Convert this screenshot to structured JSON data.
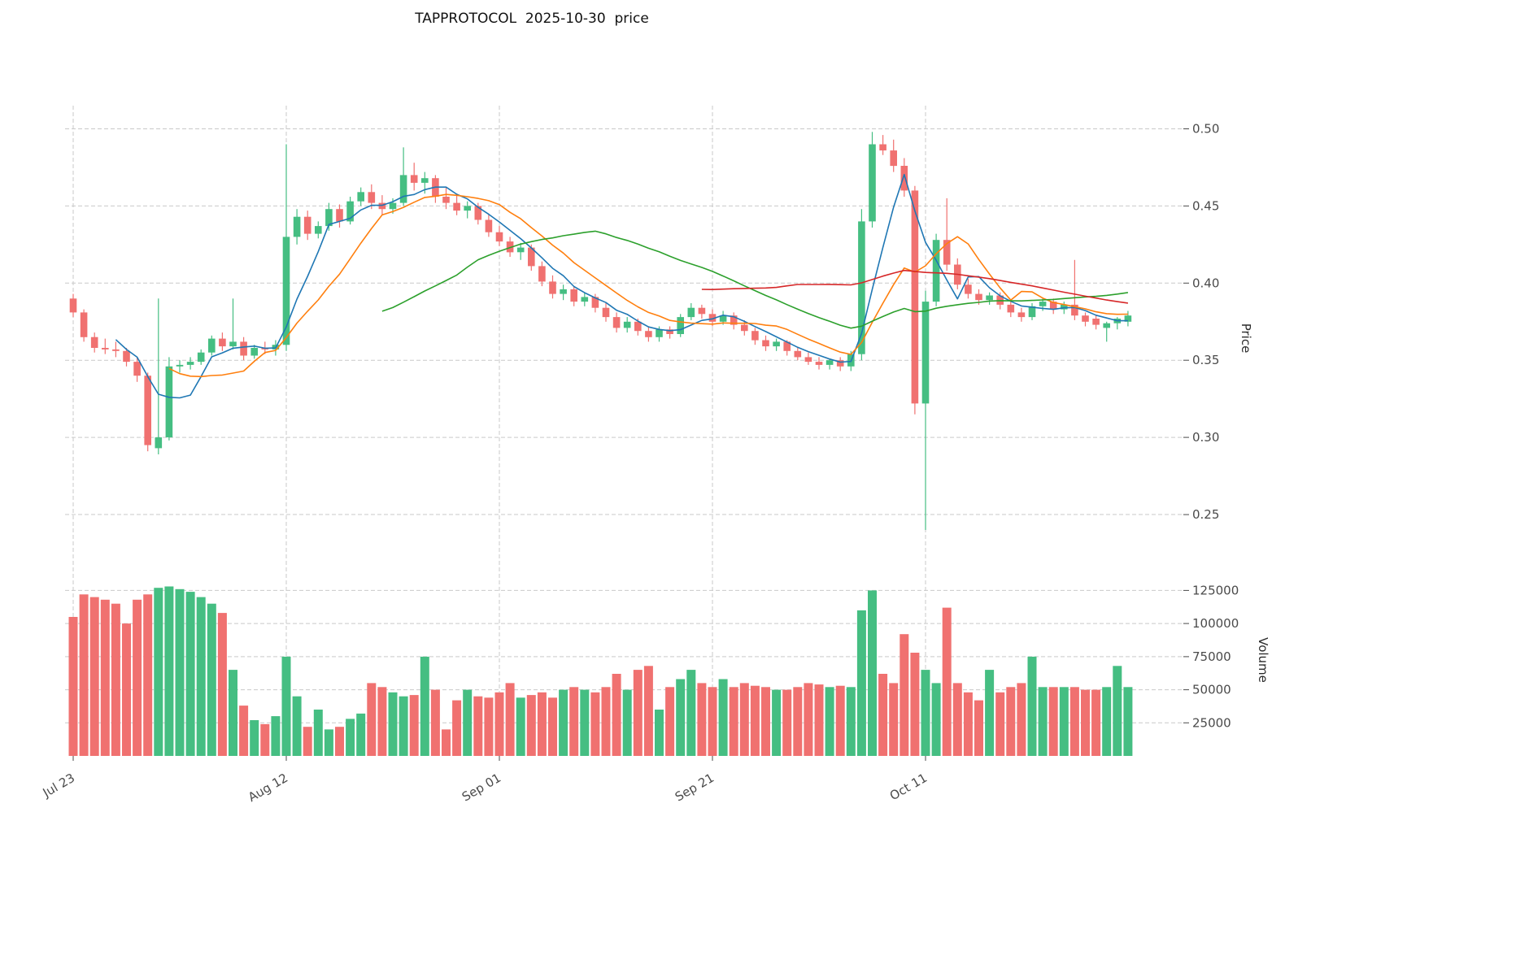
{
  "chart_data": {
    "type": "candlestick",
    "title": "TAPPROTOCOL  2025-10-30  price",
    "ylabel_price": "Price",
    "ylabel_volume": "Volume",
    "grid": true,
    "legend": "none",
    "up_color": "#45BE82",
    "down_color": "#F07170",
    "price_range": [
      0.22,
      0.515
    ],
    "volume_range": [
      0,
      140000
    ],
    "price_ticks": [
      0.25,
      0.3,
      0.35,
      0.4,
      0.45,
      0.5
    ],
    "volume_ticks": [
      25000,
      50000,
      75000,
      100000,
      125000
    ],
    "x_ticks": [
      {
        "index": 0,
        "label": "Jul 23"
      },
      {
        "index": 20,
        "label": "Aug 12"
      },
      {
        "index": 40,
        "label": "Sep 01"
      },
      {
        "index": 60,
        "label": "Sep 21"
      },
      {
        "index": 80,
        "label": "Oct 11"
      }
    ],
    "moving_averages": [
      {
        "period": 5,
        "color": "#1f77b4"
      },
      {
        "period": 10,
        "color": "#ff7f0e"
      },
      {
        "period": 30,
        "color": "#2ca02c"
      },
      {
        "period": 60,
        "color": "#d62728"
      }
    ],
    "ohlc": [
      [
        0.39,
        0.393,
        0.378,
        0.381
      ],
      [
        0.381,
        0.383,
        0.362,
        0.365
      ],
      [
        0.365,
        0.368,
        0.355,
        0.358
      ],
      [
        0.358,
        0.364,
        0.354,
        0.357
      ],
      [
        0.357,
        0.362,
        0.352,
        0.356
      ],
      [
        0.356,
        0.358,
        0.346,
        0.349
      ],
      [
        0.349,
        0.352,
        0.336,
        0.34
      ],
      [
        0.34,
        0.342,
        0.291,
        0.295
      ],
      [
        0.293,
        0.39,
        0.289,
        0.3
      ],
      [
        0.3,
        0.352,
        0.298,
        0.346
      ],
      [
        0.346,
        0.35,
        0.342,
        0.347
      ],
      [
        0.347,
        0.352,
        0.344,
        0.349
      ],
      [
        0.349,
        0.357,
        0.347,
        0.355
      ],
      [
        0.355,
        0.366,
        0.353,
        0.364
      ],
      [
        0.364,
        0.368,
        0.356,
        0.359
      ],
      [
        0.359,
        0.39,
        0.357,
        0.362
      ],
      [
        0.362,
        0.365,
        0.35,
        0.353
      ],
      [
        0.353,
        0.36,
        0.351,
        0.358
      ],
      [
        0.358,
        0.362,
        0.354,
        0.357
      ],
      [
        0.357,
        0.363,
        0.353,
        0.36
      ],
      [
        0.36,
        0.49,
        0.356,
        0.43
      ],
      [
        0.43,
        0.448,
        0.425,
        0.443
      ],
      [
        0.443,
        0.447,
        0.428,
        0.432
      ],
      [
        0.432,
        0.44,
        0.429,
        0.437
      ],
      [
        0.437,
        0.452,
        0.434,
        0.448
      ],
      [
        0.448,
        0.451,
        0.436,
        0.44
      ],
      [
        0.44,
        0.456,
        0.438,
        0.453
      ],
      [
        0.453,
        0.462,
        0.45,
        0.459
      ],
      [
        0.459,
        0.464,
        0.448,
        0.452
      ],
      [
        0.452,
        0.457,
        0.444,
        0.448
      ],
      [
        0.448,
        0.455,
        0.445,
        0.452
      ],
      [
        0.452,
        0.488,
        0.45,
        0.47
      ],
      [
        0.47,
        0.478,
        0.46,
        0.465
      ],
      [
        0.465,
        0.472,
        0.458,
        0.468
      ],
      [
        0.468,
        0.47,
        0.452,
        0.456
      ],
      [
        0.456,
        0.462,
        0.448,
        0.452
      ],
      [
        0.452,
        0.458,
        0.444,
        0.447
      ],
      [
        0.447,
        0.453,
        0.442,
        0.45
      ],
      [
        0.45,
        0.452,
        0.438,
        0.441
      ],
      [
        0.441,
        0.445,
        0.43,
        0.433
      ],
      [
        0.433,
        0.437,
        0.424,
        0.427
      ],
      [
        0.427,
        0.43,
        0.417,
        0.42
      ],
      [
        0.42,
        0.426,
        0.415,
        0.423
      ],
      [
        0.423,
        0.425,
        0.408,
        0.411
      ],
      [
        0.411,
        0.414,
        0.398,
        0.401
      ],
      [
        0.401,
        0.405,
        0.39,
        0.393
      ],
      [
        0.393,
        0.399,
        0.389,
        0.396
      ],
      [
        0.396,
        0.398,
        0.385,
        0.388
      ],
      [
        0.388,
        0.394,
        0.385,
        0.391
      ],
      [
        0.391,
        0.393,
        0.381,
        0.384
      ],
      [
        0.384,
        0.387,
        0.375,
        0.378
      ],
      [
        0.378,
        0.381,
        0.368,
        0.371
      ],
      [
        0.371,
        0.378,
        0.368,
        0.375
      ],
      [
        0.375,
        0.377,
        0.366,
        0.369
      ],
      [
        0.369,
        0.372,
        0.362,
        0.365
      ],
      [
        0.365,
        0.372,
        0.362,
        0.37
      ],
      [
        0.37,
        0.372,
        0.364,
        0.367
      ],
      [
        0.367,
        0.38,
        0.365,
        0.378
      ],
      [
        0.378,
        0.387,
        0.376,
        0.384
      ],
      [
        0.384,
        0.386,
        0.377,
        0.38
      ],
      [
        0.38,
        0.383,
        0.372,
        0.375
      ],
      [
        0.375,
        0.382,
        0.373,
        0.379
      ],
      [
        0.379,
        0.381,
        0.37,
        0.373
      ],
      [
        0.373,
        0.376,
        0.366,
        0.369
      ],
      [
        0.369,
        0.371,
        0.36,
        0.363
      ],
      [
        0.363,
        0.366,
        0.356,
        0.359
      ],
      [
        0.359,
        0.364,
        0.356,
        0.362
      ],
      [
        0.362,
        0.363,
        0.353,
        0.356
      ],
      [
        0.356,
        0.358,
        0.35,
        0.352
      ],
      [
        0.352,
        0.355,
        0.347,
        0.349
      ],
      [
        0.349,
        0.352,
        0.344,
        0.347
      ],
      [
        0.347,
        0.351,
        0.344,
        0.35
      ],
      [
        0.35,
        0.352,
        0.343,
        0.346
      ],
      [
        0.346,
        0.356,
        0.343,
        0.354
      ],
      [
        0.354,
        0.448,
        0.35,
        0.44
      ],
      [
        0.44,
        0.498,
        0.436,
        0.49
      ],
      [
        0.49,
        0.496,
        0.483,
        0.486
      ],
      [
        0.486,
        0.493,
        0.472,
        0.476
      ],
      [
        0.476,
        0.481,
        0.456,
        0.46
      ],
      [
        0.46,
        0.463,
        0.315,
        0.322
      ],
      [
        0.322,
        0.395,
        0.24,
        0.388
      ],
      [
        0.388,
        0.432,
        0.385,
        0.428
      ],
      [
        0.428,
        0.455,
        0.408,
        0.412
      ],
      [
        0.412,
        0.416,
        0.396,
        0.399
      ],
      [
        0.399,
        0.403,
        0.39,
        0.393
      ],
      [
        0.393,
        0.396,
        0.386,
        0.389
      ],
      [
        0.389,
        0.394,
        0.386,
        0.392
      ],
      [
        0.392,
        0.394,
        0.383,
        0.386
      ],
      [
        0.386,
        0.388,
        0.378,
        0.381
      ],
      [
        0.381,
        0.384,
        0.375,
        0.378
      ],
      [
        0.378,
        0.387,
        0.376,
        0.385
      ],
      [
        0.385,
        0.39,
        0.382,
        0.388
      ],
      [
        0.388,
        0.39,
        0.38,
        0.383
      ],
      [
        0.383,
        0.388,
        0.38,
        0.386
      ],
      [
        0.386,
        0.415,
        0.376,
        0.379
      ],
      [
        0.379,
        0.381,
        0.372,
        0.375
      ],
      [
        0.377,
        0.379,
        0.37,
        0.373
      ],
      [
        0.371,
        0.375,
        0.362,
        0.374
      ],
      [
        0.374,
        0.378,
        0.37,
        0.377
      ],
      [
        0.375,
        0.382,
        0.372,
        0.379
      ]
    ],
    "volume": [
      105000,
      122000,
      120000,
      118000,
      115000,
      100000,
      118000,
      122000,
      127000,
      128000,
      126000,
      124000,
      120000,
      115000,
      108000,
      65000,
      38000,
      27000,
      24000,
      30000,
      75000,
      45000,
      22000,
      35000,
      20000,
      22000,
      28000,
      32000,
      55000,
      52000,
      48000,
      45000,
      46000,
      75000,
      50000,
      20000,
      42000,
      50000,
      45000,
      44000,
      48000,
      55000,
      44000,
      46000,
      48000,
      44000,
      50000,
      52000,
      50000,
      48000,
      52000,
      62000,
      50000,
      65000,
      68000,
      35000,
      52000,
      58000,
      65000,
      55000,
      52000,
      58000,
      52000,
      55000,
      53000,
      52000,
      50000,
      50000,
      52000,
      55000,
      54000,
      52000,
      53000,
      52000,
      110000,
      125000,
      62000,
      55000,
      92000,
      78000,
      65000,
      55000,
      112000,
      55000,
      48000,
      42000,
      65000,
      48000,
      52000,
      55000,
      75000,
      52000,
      52000,
      52000,
      52000,
      50000,
      50000,
      52000,
      68000,
      52000
    ]
  }
}
